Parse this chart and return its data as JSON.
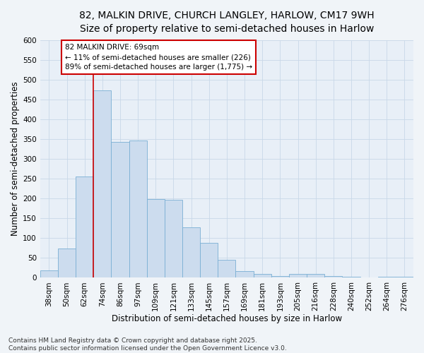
{
  "title_line1": "82, MALKIN DRIVE, CHURCH LANGLEY, HARLOW, CM17 9WH",
  "title_line2": "Size of property relative to semi-detached houses in Harlow",
  "xlabel": "Distribution of semi-detached houses by size in Harlow",
  "ylabel": "Number of semi-detached properties",
  "categories": [
    "38sqm",
    "50sqm",
    "62sqm",
    "74sqm",
    "86sqm",
    "97sqm",
    "109sqm",
    "121sqm",
    "133sqm",
    "145sqm",
    "157sqm",
    "169sqm",
    "181sqm",
    "193sqm",
    "205sqm",
    "216sqm",
    "228sqm",
    "240sqm",
    "252sqm",
    "264sqm",
    "276sqm"
  ],
  "values": [
    18,
    73,
    255,
    473,
    343,
    347,
    198,
    196,
    127,
    88,
    46,
    17,
    9,
    5,
    9,
    10,
    5,
    3,
    1,
    3,
    2
  ],
  "bar_color": "#ccdcee",
  "bar_edge_color": "#7aafd4",
  "vline_index": 3,
  "vline_color": "#cc0000",
  "annotation_text": "82 MALKIN DRIVE: 69sqm\n← 11% of semi-detached houses are smaller (226)\n89% of semi-detached houses are larger (1,775) →",
  "annotation_box_facecolor": "#ffffff",
  "annotation_box_edgecolor": "#cc0000",
  "ylim": [
    0,
    600
  ],
  "yticks": [
    0,
    50,
    100,
    150,
    200,
    250,
    300,
    350,
    400,
    450,
    500,
    550,
    600
  ],
  "grid_color": "#c8d8e8",
  "background_color": "#f0f4f8",
  "plot_background": "#e8eff7",
  "footnote": "Contains HM Land Registry data © Crown copyright and database right 2025.\nContains public sector information licensed under the Open Government Licence v3.0.",
  "title_fontsize": 10,
  "subtitle_fontsize": 9,
  "axis_label_fontsize": 8.5,
  "tick_fontsize": 7.5,
  "annotation_fontsize": 7.5,
  "footnote_fontsize": 6.5
}
